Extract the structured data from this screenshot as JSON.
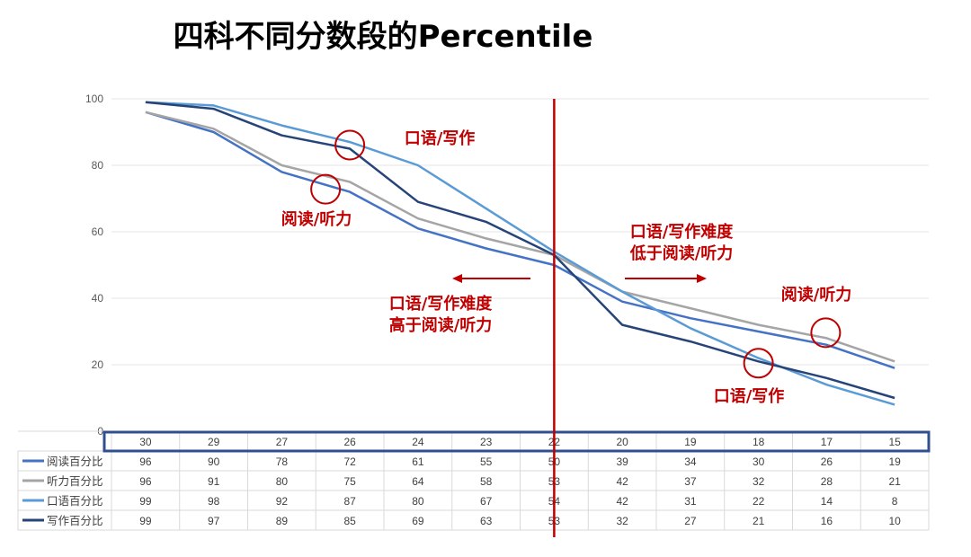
{
  "colors": {
    "title": "#1f4e9c",
    "accent": "#c00000",
    "grid": "#e6e6e6",
    "axis_text": "#595959",
    "table_border": "#d9d9d9",
    "highlight_box": "#2f4f8f"
  },
  "chart_data": {
    "type": "line",
    "title": "四科不同分数段的Percentile",
    "x": [
      "30",
      "29",
      "27",
      "26",
      "24",
      "23",
      "22",
      "20",
      "19",
      "18",
      "17",
      "15"
    ],
    "ylim": [
      0,
      100
    ],
    "yticks": [
      0,
      20,
      40,
      60,
      80,
      100
    ],
    "grid": true,
    "legend_position": "data-table-left",
    "series": [
      {
        "name": "阅读百分比",
        "color": "#4472c4",
        "values": [
          96,
          90,
          78,
          72,
          61,
          55,
          50,
          39,
          34,
          30,
          26,
          19
        ]
      },
      {
        "name": "听力百分比",
        "color": "#a5a5a5",
        "values": [
          96,
          91,
          80,
          75,
          64,
          58,
          53,
          42,
          37,
          32,
          28,
          21
        ]
      },
      {
        "name": "口语百分比",
        "color": "#5b9bd5",
        "values": [
          99,
          98,
          92,
          87,
          80,
          67,
          54,
          42,
          31,
          22,
          14,
          8
        ]
      },
      {
        "name": "写作百分比",
        "color": "#264478",
        "values": [
          99,
          97,
          89,
          85,
          69,
          63,
          53,
          32,
          27,
          21,
          16,
          10
        ]
      }
    ],
    "divider_at_x": "22",
    "annotations": [
      {
        "key": "speak_write_top",
        "lines": [
          "口语/写作"
        ]
      },
      {
        "key": "read_listen_top",
        "lines": [
          "阅读/听力"
        ]
      },
      {
        "key": "harder",
        "lines": [
          "口语/写作难度",
          "高于阅读/听力"
        ]
      },
      {
        "key": "easier",
        "lines": [
          "口语/写作难度",
          "低于阅读/听力"
        ]
      },
      {
        "key": "read_listen_bottom",
        "lines": [
          "阅读/听力"
        ]
      },
      {
        "key": "speak_write_bottom",
        "lines": [
          "口语/写作"
        ]
      }
    ]
  }
}
